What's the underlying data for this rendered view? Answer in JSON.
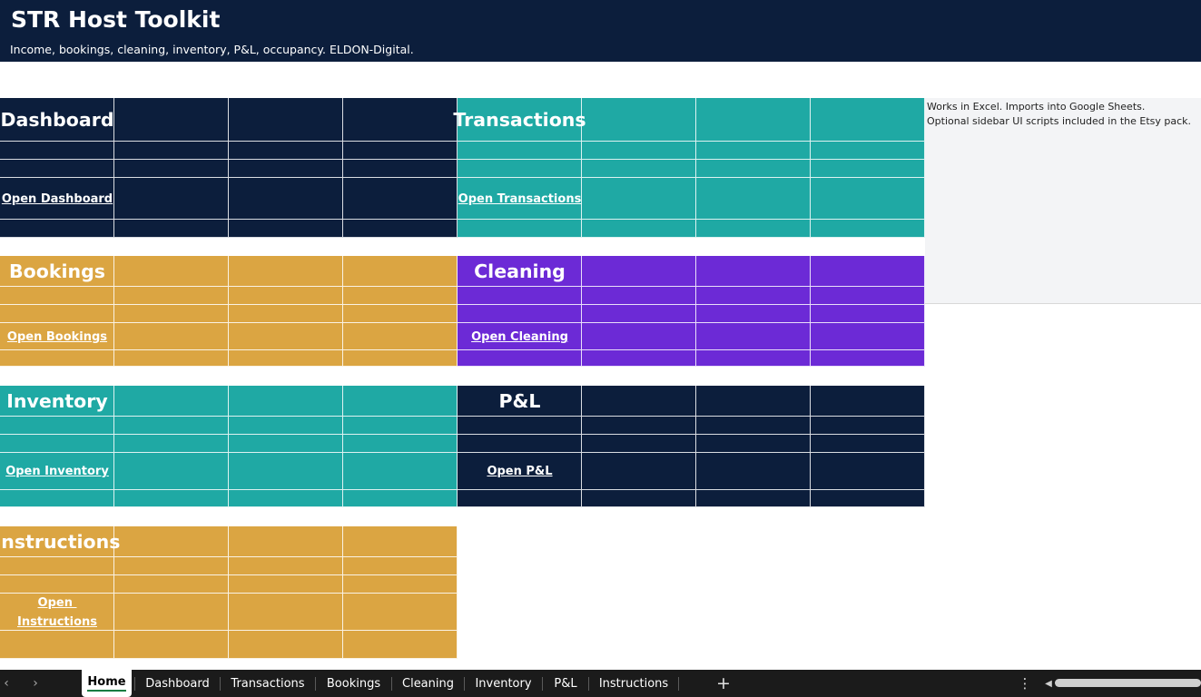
{
  "header": {
    "title": "STR Host Toolkit",
    "subtitle": "Income, bookings, cleaning, inventory, P&L, occupancy. ELDON-Digital."
  },
  "tiles": [
    {
      "id": "dashboard",
      "label": "Dashboard",
      "link": "Open Dashboard",
      "color": "#0c1e3c"
    },
    {
      "id": "transactions",
      "label": "Transactions",
      "link": "Open Transactions",
      "color": "#1fa9a4"
    },
    {
      "id": "bookings",
      "label": "Bookings",
      "link": "Open Bookings",
      "color": "#dba542"
    },
    {
      "id": "cleaning",
      "label": "Cleaning",
      "link": "Open Cleaning",
      "color": "#6c2ad6"
    },
    {
      "id": "inventory",
      "label": "Inventory",
      "link": "Open Inventory",
      "color": "#1fa9a4"
    },
    {
      "id": "pnl",
      "label": "P&L",
      "link": "Open P&L",
      "color": "#0c1e3c"
    },
    {
      "id": "instructions",
      "label": "Instructions",
      "link_line1": "Open ",
      "link_line2": "Instructions",
      "color": "#dba542"
    }
  ],
  "note": {
    "line1": "Works in Excel. Imports into Google Sheets.",
    "line2": "Optional sidebar UI scripts included in the Etsy pack."
  },
  "sheet_tabs": [
    "Home",
    "Dashboard",
    "Transactions",
    "Bookings",
    "Cleaning",
    "Inventory",
    "P&L",
    "Instructions"
  ],
  "active_tab": "Home",
  "icons": {
    "prev": "chevron-left-icon",
    "next": "chevron-right-icon",
    "add": "plus-icon",
    "more": "vertical-ellipsis-icon"
  }
}
